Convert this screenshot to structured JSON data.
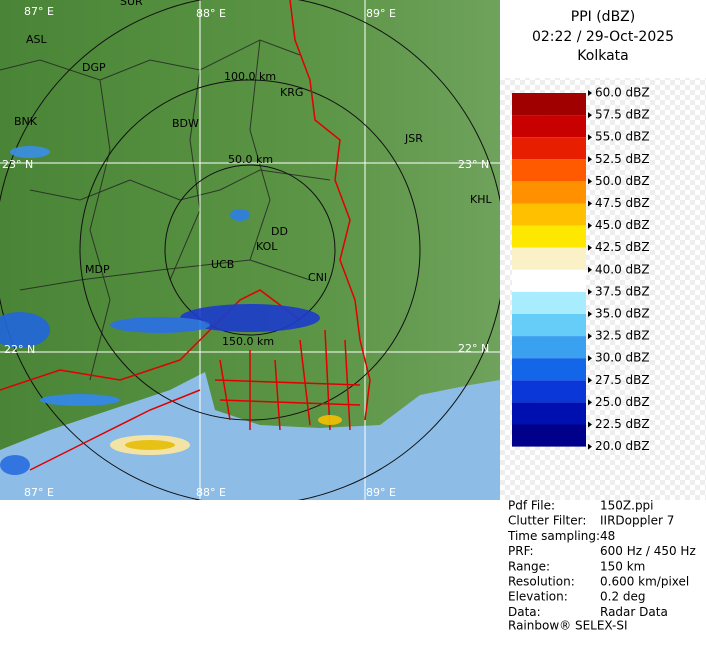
{
  "panel": {
    "title": "PPI (dBZ)",
    "time": "02:22 / 29-Oct-2025",
    "site": "Kolkata",
    "scale": [
      "60.0 dBZ",
      "57.5 dBZ",
      "55.0 dBZ",
      "52.5 dBZ",
      "50.0 dBZ",
      "47.5 dBZ",
      "45.0 dBZ",
      "42.5 dBZ",
      "40.0 dBZ",
      "37.5 dBZ",
      "35.0 dBZ",
      "32.5 dBZ",
      "30.0 dBZ",
      "27.5 dBZ",
      "25.0 dBZ",
      "22.5 dBZ",
      "20.0 dBZ"
    ],
    "info": [
      [
        "Pdf File:",
        "150Z.ppi"
      ],
      [
        "Clutter Filter:",
        "IIRDoppler 7"
      ],
      [
        "Time sampling:",
        "48"
      ],
      [
        "PRF:",
        "600 Hz / 450 Hz"
      ],
      [
        "Range:",
        "150 km"
      ],
      [
        "Resolution:",
        "0.600 km/pixel"
      ],
      [
        "Elevation:",
        "0.2 deg"
      ],
      [
        "Data:",
        "Radar Data"
      ]
    ],
    "footer": "Rainbow® SELEX-SI"
  },
  "map": {
    "cities": [
      "SUR",
      "ASL",
      "DGP",
      "KRG",
      "BNK",
      "BDW",
      "JSR",
      "KHL",
      "DD",
      "KOL",
      "UCB",
      "MDP",
      "CNI"
    ],
    "grid_labels": [
      "87° E",
      "88° E",
      "89° E",
      "23° N",
      "23° N",
      "22° N",
      "22° N",
      "87° E",
      "88° E",
      "89° E"
    ],
    "range_labels": [
      "100.0 km",
      "50.0 km",
      "150.0 km"
    ]
  }
}
